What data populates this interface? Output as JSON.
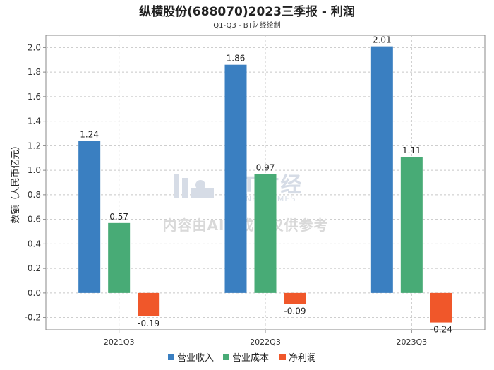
{
  "chart_data": {
    "type": "bar",
    "title": "纵横股份(688070)2023三季报 - 利润",
    "subtitle": "Q1-Q3 - BT财经绘制",
    "xlabel": "",
    "ylabel": "数额（人民币亿元）",
    "ylim": [
      -0.3,
      2.1
    ],
    "yticks": [
      -0.2,
      0.0,
      0.2,
      0.4,
      0.6,
      0.8,
      1.0,
      1.2,
      1.4,
      1.6,
      1.8,
      2.0
    ],
    "categories": [
      "2021Q3",
      "2022Q3",
      "2023Q3"
    ],
    "series": [
      {
        "name": "营业收入",
        "color": "#3a7fc1",
        "values": [
          1.24,
          1.86,
          2.01
        ]
      },
      {
        "name": "营业成本",
        "color": "#48ab76",
        "values": [
          0.57,
          0.97,
          1.11
        ]
      },
      {
        "name": "净利润",
        "color": "#f0572a",
        "values": [
          -0.19,
          -0.09,
          -0.24
        ]
      }
    ],
    "grid": true,
    "legend": "bottom-center",
    "watermark": {
      "brand": "BT财经",
      "brand_en": "BUSINESSTIMES",
      "notice": "内容由AI生成，仅供参考"
    }
  }
}
